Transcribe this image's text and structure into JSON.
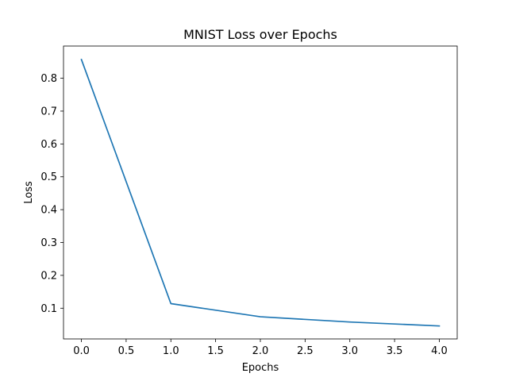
{
  "chart_data": {
    "type": "line",
    "title": "MNIST Loss over Epochs",
    "xlabel": "Epochs",
    "ylabel": "Loss",
    "xlim": [
      -0.2,
      4.2
    ],
    "ylim": [
      0.0065,
      0.898
    ],
    "xticks": [
      0.0,
      0.5,
      1.0,
      1.5,
      2.0,
      2.5,
      3.0,
      3.5,
      4.0
    ],
    "xtick_labels": [
      "0.0",
      "0.5",
      "1.0",
      "1.5",
      "2.0",
      "2.5",
      "3.0",
      "3.5",
      "4.0"
    ],
    "yticks": [
      0.1,
      0.2,
      0.3,
      0.4,
      0.5,
      0.6,
      0.7,
      0.8
    ],
    "ytick_labels": [
      "0.1",
      "0.2",
      "0.3",
      "0.4",
      "0.5",
      "0.6",
      "0.7",
      "0.8"
    ],
    "grid": false,
    "series": [
      {
        "x": [
          0,
          1,
          2,
          3,
          4
        ],
        "values": [
          0.857,
          0.114,
          0.074,
          0.058,
          0.046
        ],
        "color": "#1f77b4"
      }
    ]
  }
}
